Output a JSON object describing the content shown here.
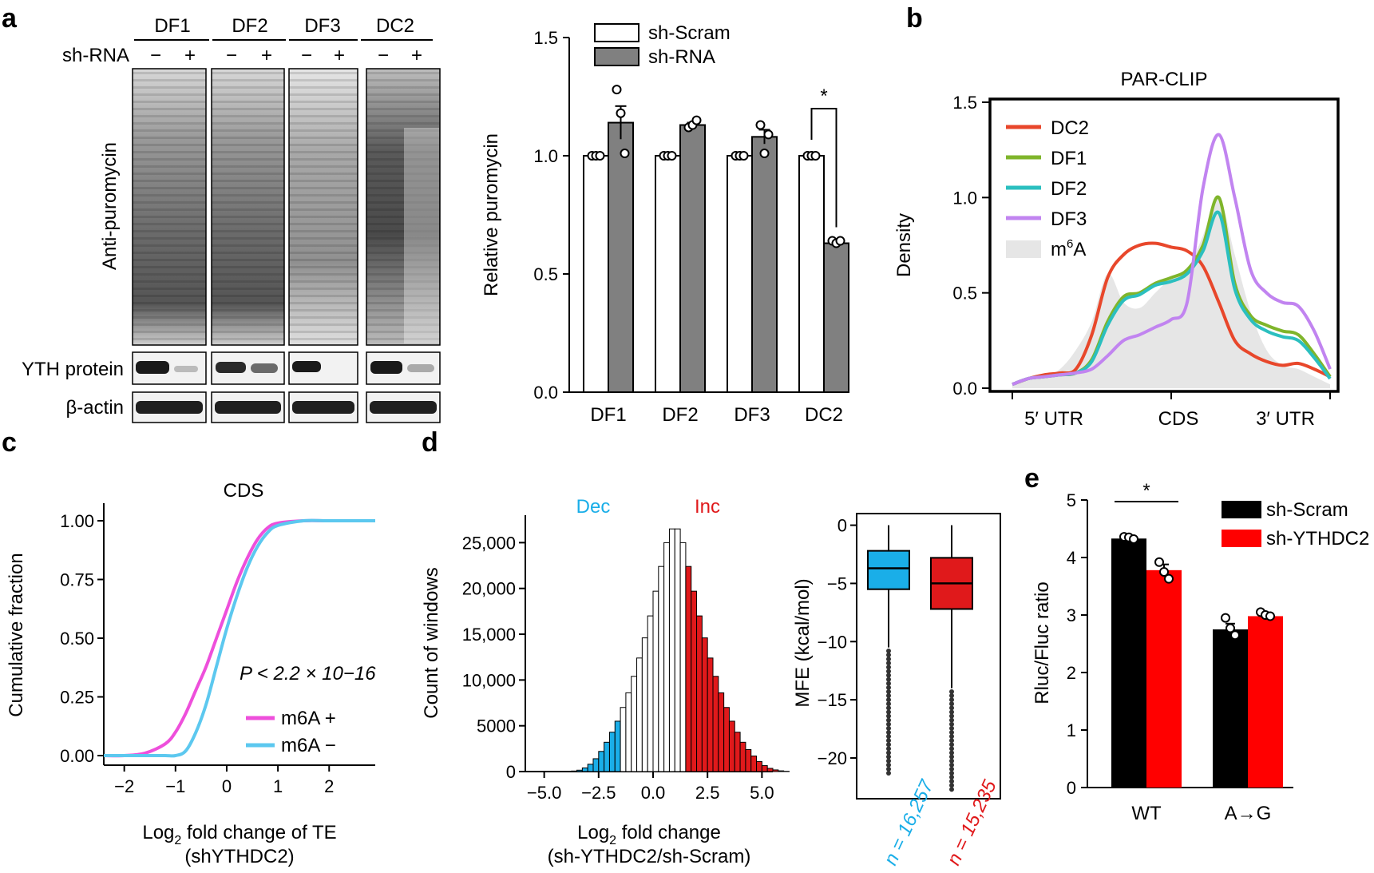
{
  "figure": {
    "panel_letters": [
      "a",
      "b",
      "c",
      "d",
      "e"
    ],
    "blot": {
      "lanes": [
        "DF1",
        "DF2",
        "DF3",
        "DC2"
      ],
      "shrna_label": "sh-RNA",
      "minus": "−",
      "plus": "+",
      "main_label": "Anti-puromycin",
      "yth_label": "YTH protein",
      "actin_label": "β-actin"
    }
  },
  "chart_data": [
    {
      "id": "a",
      "type": "bar",
      "categories": [
        "DF1",
        "DF2",
        "DF3",
        "DC2"
      ],
      "series": [
        {
          "name": "sh-Scram",
          "color": "#ffffff",
          "values": [
            1.0,
            1.0,
            1.0,
            1.0
          ],
          "err": [
            0.0,
            0.0,
            0.0,
            0.0
          ],
          "points": [
            [
              1.0,
              1.0,
              1.0
            ],
            [
              1.0,
              1.0,
              1.0
            ],
            [
              1.0,
              1.0,
              1.0
            ],
            [
              1.0,
              1.0,
              1.0
            ]
          ]
        },
        {
          "name": "sh-RNA",
          "color": "#808080",
          "values": [
            1.14,
            1.13,
            1.08,
            0.63
          ],
          "err": [
            0.07,
            0.01,
            0.03,
            0.0
          ],
          "points": [
            [
              1.28,
              1.18,
              1.01
            ],
            [
              1.12,
              1.13,
              1.15
            ],
            [
              1.13,
              1.01,
              1.09
            ],
            [
              0.64,
              0.63,
              0.64
            ]
          ]
        }
      ],
      "ylabel": "Relative puromycin",
      "ylim": [
        0,
        1.5
      ],
      "yticks": [
        "0.0",
        "0.5",
        "1.0",
        "1.5"
      ],
      "significance": "*",
      "legend_position": "top"
    },
    {
      "id": "b",
      "type": "line",
      "title": "PAR-CLIP",
      "ylabel": "Density",
      "ylim": [
        0,
        1.5
      ],
      "yticks": [
        "0.0",
        "0.5",
        "1.0",
        "1.5"
      ],
      "xcategories": [
        "5′ UTR",
        "CDS",
        "3′ UTR"
      ],
      "x": [
        0,
        0.05,
        0.1,
        0.15,
        0.2,
        0.25,
        0.3,
        0.35,
        0.4,
        0.45,
        0.5,
        0.55,
        0.6,
        0.65,
        0.7,
        0.75,
        0.8,
        0.85,
        0.9,
        0.95,
        1.0
      ],
      "series": [
        {
          "name": "DC2",
          "color": "#e8472b",
          "values": [
            0.02,
            0.05,
            0.07,
            0.08,
            0.1,
            0.28,
            0.58,
            0.7,
            0.75,
            0.76,
            0.74,
            0.72,
            0.64,
            0.45,
            0.25,
            0.18,
            0.14,
            0.12,
            0.13,
            0.1,
            0.06
          ]
        },
        {
          "name": "DF1",
          "color": "#7fb52b",
          "values": [
            0.02,
            0.05,
            0.06,
            0.07,
            0.08,
            0.15,
            0.35,
            0.48,
            0.5,
            0.55,
            0.58,
            0.62,
            0.75,
            1.0,
            0.55,
            0.38,
            0.33,
            0.3,
            0.28,
            0.18,
            0.06
          ]
        },
        {
          "name": "DF2",
          "color": "#2bbfbf",
          "values": [
            0.02,
            0.05,
            0.06,
            0.07,
            0.08,
            0.14,
            0.33,
            0.46,
            0.49,
            0.54,
            0.56,
            0.6,
            0.72,
            0.92,
            0.52,
            0.36,
            0.3,
            0.27,
            0.25,
            0.16,
            0.05
          ]
        },
        {
          "name": "DF3",
          "color": "#c184f0",
          "values": [
            0.02,
            0.05,
            0.06,
            0.07,
            0.08,
            0.1,
            0.17,
            0.25,
            0.28,
            0.32,
            0.36,
            0.45,
            1.05,
            1.33,
            1.0,
            0.62,
            0.5,
            0.45,
            0.43,
            0.3,
            0.1
          ]
        },
        {
          "name": "m6A",
          "color": "#e6e6e6",
          "values": [
            0.02,
            0.04,
            0.06,
            0.1,
            0.2,
            0.35,
            0.6,
            0.45,
            0.42,
            0.5,
            0.58,
            0.62,
            0.8,
            1.0,
            0.7,
            0.4,
            0.2,
            0.12,
            0.1,
            0.06,
            0.02
          ]
        }
      ],
      "legend_position": "top-left"
    },
    {
      "id": "c",
      "type": "line",
      "title": "CDS",
      "xlabel": "Log2 fold change of TE",
      "xlabel_main": "Log",
      "xlabel_sub": "2",
      "xlabel_rest": "fold change of TE",
      "xlabel2": "(shYTHDC2)",
      "ylabel": "Cumulative fraction",
      "xlim": [
        -2.4,
        2.9
      ],
      "ylim": [
        0,
        1
      ],
      "xticks": [
        "−2",
        "−1",
        "0",
        "1",
        "2"
      ],
      "yticks": [
        "0.00",
        "0.25",
        "0.50",
        "0.75",
        "1.00"
      ],
      "annotation": "P < 2.2 × 10−16",
      "series": [
        {
          "name": "m6A +",
          "color": "#ee4fdb",
          "x": [
            -2.4,
            -2.0,
            -1.6,
            -1.2,
            -1.0,
            -0.8,
            -0.6,
            -0.4,
            -0.2,
            0.0,
            0.2,
            0.4,
            0.6,
            0.8,
            1.0,
            1.5,
            2.0,
            2.9
          ],
          "values": [
            0.0,
            0.0,
            0.01,
            0.05,
            0.1,
            0.18,
            0.28,
            0.38,
            0.5,
            0.62,
            0.74,
            0.84,
            0.92,
            0.97,
            0.99,
            1.0,
            1.0,
            1.0
          ]
        },
        {
          "name": "m6A −",
          "color": "#5cc8ef",
          "x": [
            -2.4,
            -2.0,
            -1.6,
            -1.2,
            -1.0,
            -0.8,
            -0.6,
            -0.4,
            -0.2,
            0.0,
            0.2,
            0.4,
            0.6,
            0.8,
            1.0,
            1.5,
            2.0,
            2.9
          ],
          "values": [
            0.0,
            0.0,
            0.0,
            0.0,
            0.0,
            0.02,
            0.1,
            0.22,
            0.38,
            0.54,
            0.68,
            0.8,
            0.89,
            0.95,
            0.98,
            1.0,
            1.0,
            1.0
          ]
        }
      ],
      "legend_position": "bottom-right"
    },
    {
      "id": "d-hist",
      "type": "bar",
      "label_dec": "Dec",
      "label_inc": "Inc",
      "color_dec": "#1aaee8",
      "color_inc": "#e0191b",
      "xlabel": "Log2 fold change",
      "xlabel_main": "Log",
      "xlabel_sub": "2",
      "xlabel_rest": "fold change",
      "xlabel2": "(sh-YTHDC2/sh-Scram)",
      "ylabel": "Count of windows",
      "xlim": [
        -5.5,
        5.5
      ],
      "ylim": [
        0,
        28000
      ],
      "xticks": [
        "−5.0",
        "−2.5",
        "0.0",
        "2.5",
        "5.0"
      ],
      "yticks": [
        "0",
        "5000",
        "10,000",
        "15,000",
        "20,000",
        "25,000"
      ],
      "bin_width": 0.25,
      "bin_start": -3.75,
      "counts": [
        60,
        150,
        400,
        800,
        1400,
        2200,
        3200,
        4300,
        5500,
        7000,
        8600,
        10400,
        12400,
        14600,
        17000,
        19700,
        22400,
        25000,
        26500,
        26500,
        25000,
        22400,
        19700,
        17000,
        14600,
        12400,
        10400,
        8600,
        7000,
        5500,
        4300,
        3200,
        2400,
        1700,
        1100,
        650,
        350,
        180,
        80,
        30
      ],
      "dec_threshold": -1.5,
      "inc_threshold": 1.5
    },
    {
      "id": "d-box",
      "type": "box",
      "ylabel": "MFE (kcal/mol)",
      "ylim": [
        -23.5,
        1
      ],
      "yticks": [
        "0",
        "−5",
        "−10",
        "−15",
        "−20"
      ],
      "boxes": [
        {
          "name": "Dec",
          "color": "#1aaee8",
          "median": -3.7,
          "q1": -5.5,
          "q3": -2.2,
          "whisker_low": -10.5,
          "whisker_high": 0.0,
          "n_label": "n = 16,257"
        },
        {
          "name": "Inc",
          "color": "#e0191b",
          "median": -5.0,
          "q1": -7.2,
          "q3": -2.8,
          "whisker_low": -14.0,
          "whisker_high": 0.0,
          "n_label": "n = 15,235"
        }
      ]
    },
    {
      "id": "e",
      "type": "bar",
      "categories": [
        "WT",
        "A→G"
      ],
      "series": [
        {
          "name": "sh-Scram",
          "color": "#000000",
          "values": [
            4.33,
            2.75
          ],
          "err": [
            0.04,
            0.1
          ],
          "points": [
            [
              4.36,
              4.35,
              4.32
            ],
            [
              2.95,
              2.77,
              2.65
            ]
          ]
        },
        {
          "name": "sh-YTHDC2",
          "color": "#ff0000",
          "values": [
            3.78,
            2.98
          ],
          "err": [
            0.1,
            0.04
          ],
          "points": [
            [
              3.92,
              3.75,
              3.63
            ],
            [
              3.05,
              3.0,
              2.98
            ]
          ]
        }
      ],
      "ylabel": "Rluc/Fluc ratio",
      "ylim": [
        0,
        5
      ],
      "yticks": [
        "0",
        "1",
        "2",
        "3",
        "4",
        "5"
      ],
      "significance": "*",
      "legend_position": "top-right"
    }
  ]
}
